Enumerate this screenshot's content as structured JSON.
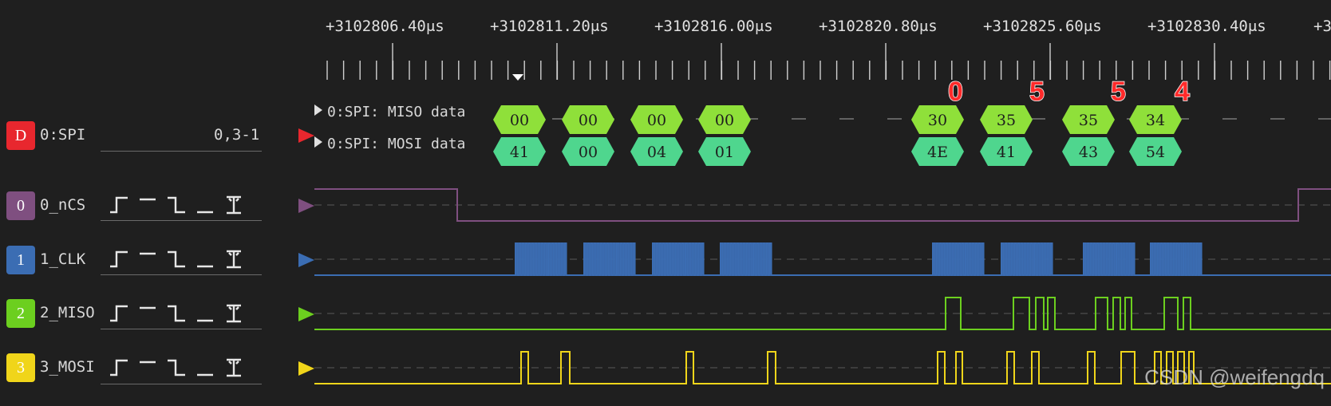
{
  "timeline": {
    "ticks": [
      "+3102806.40μs",
      "+3102811.20μs",
      "+3102816.00μs",
      "+3102820.80μs",
      "+3102825.60μs",
      "+3102830.40μs",
      "+3"
    ]
  },
  "decoder": {
    "badge": "D",
    "name": "0:SPI",
    "params": "0,3-1",
    "color": "#e8272e",
    "rows": {
      "miso_label": "0:SPI: MISO data",
      "mosi_label": "0:SPI: MOSI data"
    },
    "miso_bytes": [
      "00",
      "00",
      "00",
      "00",
      "30",
      "35",
      "35",
      "34"
    ],
    "mosi_bytes": [
      "41",
      "00",
      "04",
      "01",
      "4E",
      "41",
      "43",
      "54"
    ],
    "annotations": [
      "0",
      "5",
      "5",
      "4"
    ]
  },
  "channels": [
    {
      "badge": "0",
      "name": "0_nCS",
      "color": "#7f4f80"
    },
    {
      "badge": "1",
      "name": "1_CLK",
      "color": "#3b6db3"
    },
    {
      "badge": "2",
      "name": "2_MISO",
      "color": "#6ccf1f"
    },
    {
      "badge": "3",
      "name": "3_MOSI",
      "color": "#f0d51a"
    }
  ],
  "colors": {
    "miso_hex": "#8fe03a",
    "mosi_hex": "#4fd68e",
    "background": "#1f1f1f"
  },
  "watermark": "CSDN @weifengdq"
}
